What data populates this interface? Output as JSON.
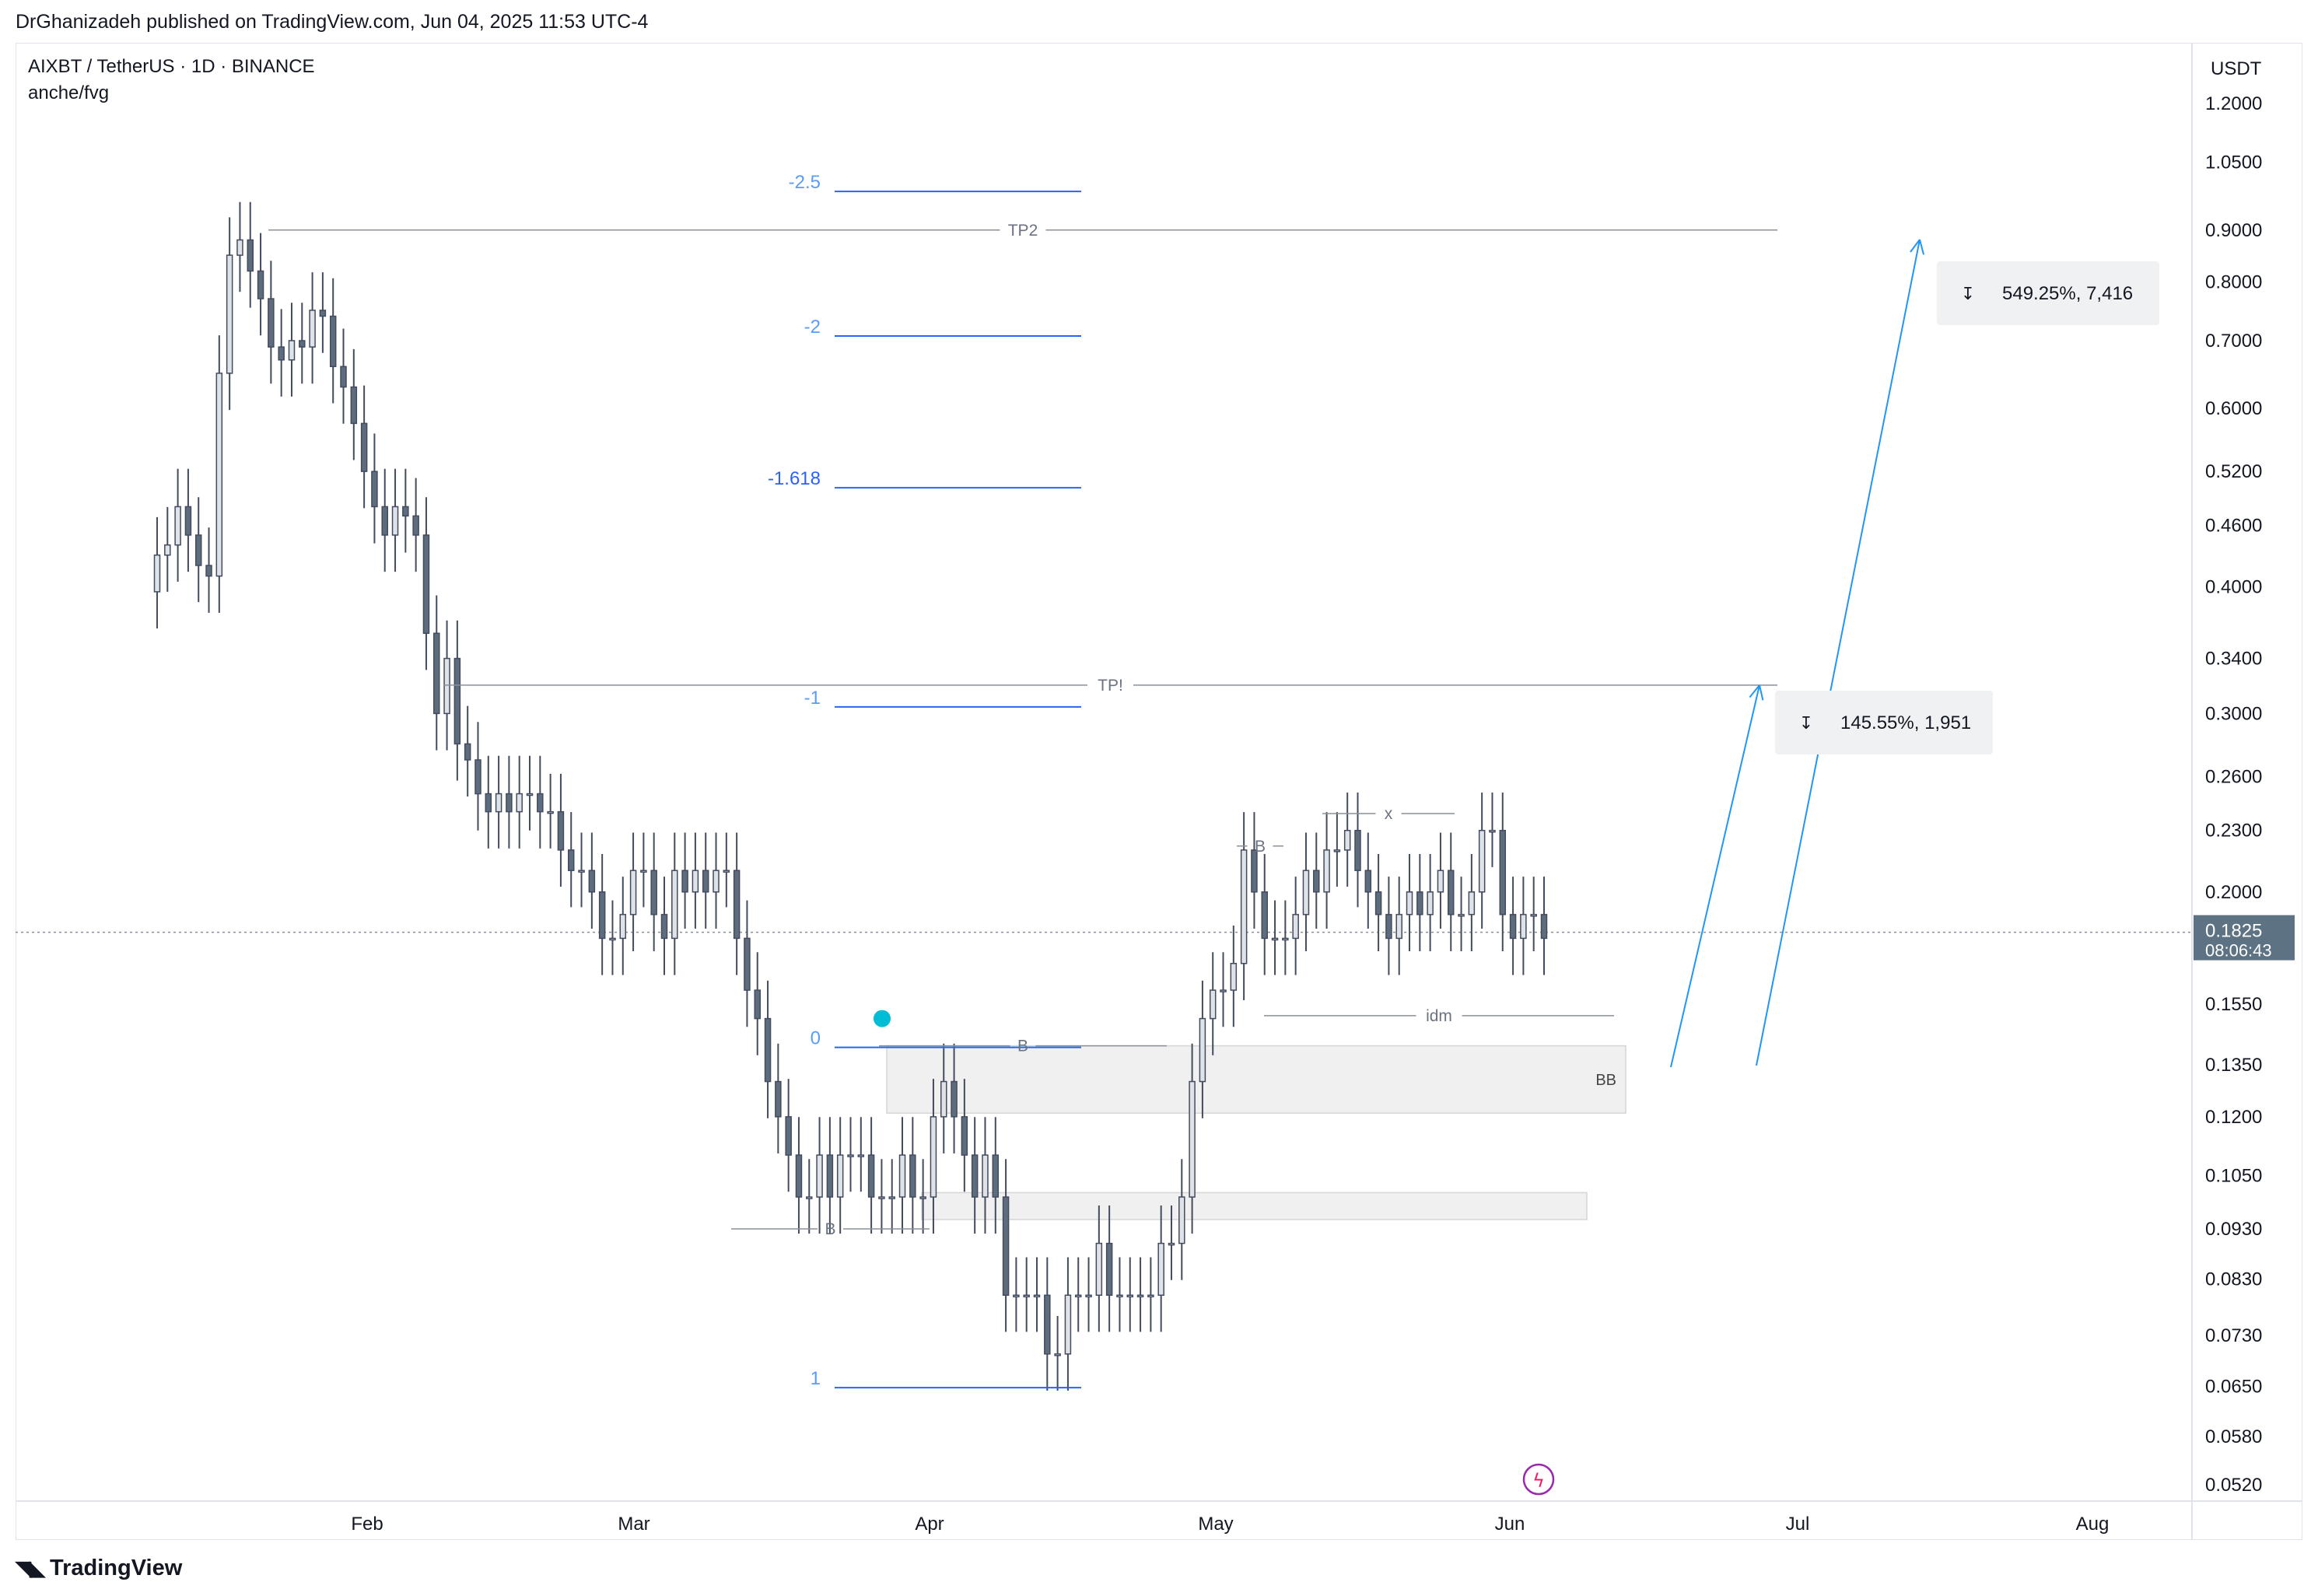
{
  "header": {
    "published": "DrGhanizadeh published on TradingView.com, Jun 04, 2025 11:53 UTC-4"
  },
  "symbol": {
    "title": "AIXBT / TetherUS · 1D · BINANCE",
    "indicator": "anche/fvg"
  },
  "footer": {
    "brand": "TradingView"
  },
  "colors": {
    "candle_up": "#dfe3e8",
    "candle_down": "#5d6d7e",
    "fib": "#2962ff",
    "fib_label": "#5b9cf6",
    "arrow": "#2196f3",
    "marker": "#00bcd4",
    "price_tag": "#5d7283"
  },
  "chart_data": {
    "type": "candlestick",
    "title": "AIXBT / TetherUS · 1D · BINANCE",
    "y_scale": "log",
    "currency": "USDT",
    "ylim": [
      0.05,
      1.25
    ],
    "y_ticks": [
      "1.2000",
      "1.0500",
      "0.9000",
      "0.8000",
      "0.7000",
      "0.6000",
      "0.5200",
      "0.4600",
      "0.4000",
      "0.3400",
      "0.3000",
      "0.2600",
      "0.2300",
      "0.2000",
      "0.1550",
      "0.1350",
      "0.1200",
      "0.1050",
      "0.0930",
      "0.0830",
      "0.0730",
      "0.0650",
      "0.0580",
      "0.0520"
    ],
    "x_ticks": [
      "Feb",
      "Mar",
      "Apr",
      "May",
      "Jun",
      "Jul",
      "Aug"
    ],
    "current_price": "0.1825",
    "countdown": "08:06:43",
    "candles_close_approx": [
      0.43,
      0.44,
      0.48,
      0.45,
      0.42,
      0.41,
      0.65,
      0.85,
      0.88,
      0.82,
      0.77,
      0.69,
      0.67,
      0.7,
      0.69,
      0.75,
      0.74,
      0.66,
      0.63,
      0.58,
      0.52,
      0.48,
      0.45,
      0.48,
      0.47,
      0.45,
      0.36,
      0.3,
      0.34,
      0.28,
      0.27,
      0.25,
      0.24,
      0.25,
      0.24,
      0.25,
      0.25,
      0.24,
      0.24,
      0.22,
      0.21,
      0.21,
      0.2,
      0.18,
      0.18,
      0.19,
      0.21,
      0.21,
      0.19,
      0.18,
      0.21,
      0.2,
      0.21,
      0.2,
      0.21,
      0.21,
      0.18,
      0.16,
      0.15,
      0.13,
      0.12,
      0.11,
      0.1,
      0.1,
      0.11,
      0.1,
      0.11,
      0.11,
      0.11,
      0.1,
      0.1,
      0.1,
      0.11,
      0.1,
      0.1,
      0.12,
      0.13,
      0.12,
      0.11,
      0.1,
      0.11,
      0.1,
      0.08,
      0.08,
      0.08,
      0.08,
      0.07,
      0.07,
      0.08,
      0.08,
      0.08,
      0.09,
      0.08,
      0.08,
      0.08,
      0.08,
      0.08,
      0.09,
      0.09,
      0.1,
      0.13,
      0.15,
      0.16,
      0.16,
      0.17,
      0.22,
      0.2,
      0.18,
      0.18,
      0.18,
      0.19,
      0.21,
      0.2,
      0.22,
      0.22,
      0.23,
      0.21,
      0.2,
      0.19,
      0.18,
      0.19,
      0.2,
      0.19,
      0.2,
      0.21,
      0.19,
      0.19,
      0.2,
      0.23,
      0.23,
      0.19,
      0.18,
      0.19,
      0.19,
      0.18
    ],
    "fib_levels": [
      {
        "label": "-2.5",
        "value": 1.0
      },
      {
        "label": "-2",
        "value": 0.72
      },
      {
        "label": "-1.618",
        "value": 0.51
      },
      {
        "label": "-1",
        "value": 0.31
      },
      {
        "label": "0",
        "value": 0.143
      },
      {
        "label": "1",
        "value": 0.066
      }
    ],
    "levels": [
      {
        "label": "TP2",
        "value": 0.9
      },
      {
        "label": "TP!",
        "value": 0.32
      },
      {
        "label": "x",
        "value": 0.239
      },
      {
        "label": "B",
        "value": 0.222
      },
      {
        "label": "idm",
        "value": 0.151
      },
      {
        "label": "B",
        "value": 0.141
      },
      {
        "label": "B",
        "value": 0.093
      }
    ],
    "zones": [
      {
        "label": "BB",
        "top": 0.141,
        "bottom": 0.121
      },
      {
        "label": "",
        "top": 0.101,
        "bottom": 0.095
      }
    ],
    "measurements": [
      {
        "label": "549.25%, 7,416"
      },
      {
        "label": "145.55%, 1,951"
      }
    ]
  }
}
